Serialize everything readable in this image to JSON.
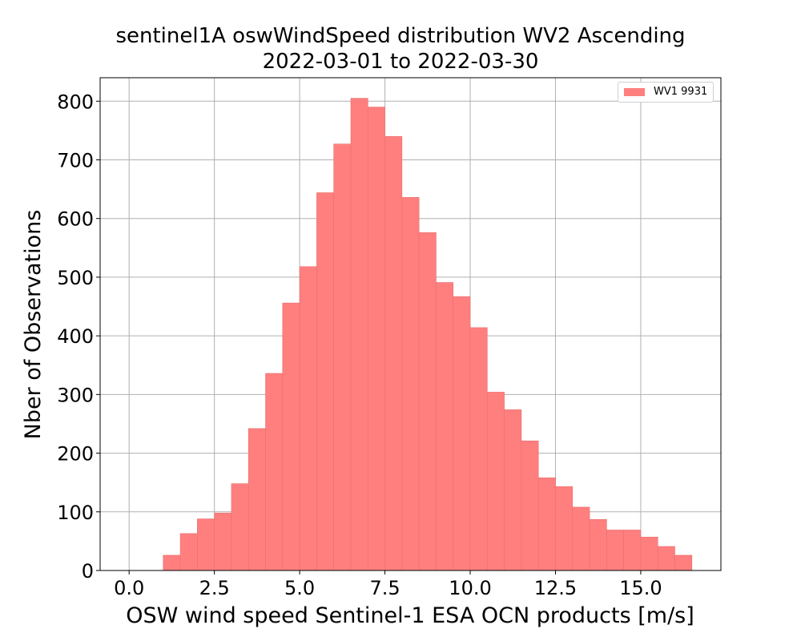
{
  "title_line1": "sentinel1A oswWindSpeed distribution WV2 Ascending",
  "title_line2": "2022-03-01 to 2022-03-30",
  "chart_data": {
    "type": "bar",
    "xlabel": "OSW wind speed Sentinel-1 ESA OCN products [m/s]",
    "ylabel": "Nber of Observations",
    "xlim": [
      -0.85,
      17.35
    ],
    "ylim": [
      0,
      840
    ],
    "xticks": [
      0.0,
      2.5,
      5.0,
      7.5,
      10.0,
      12.5,
      15.0
    ],
    "xtick_labels": [
      "0.0",
      "2.5",
      "5.0",
      "7.5",
      "10.0",
      "12.5",
      "15.0"
    ],
    "yticks": [
      0,
      100,
      200,
      300,
      400,
      500,
      600,
      700,
      800
    ],
    "ytick_labels": [
      "0",
      "100",
      "200",
      "300",
      "400",
      "500",
      "600",
      "700",
      "800"
    ],
    "grid": true,
    "legend_position": "top-right",
    "bar_color": "#ff7f7f",
    "bin_width": 0.5,
    "bin_edges": [
      1.0,
      1.5,
      2.0,
      2.5,
      3.0,
      3.5,
      4.0,
      4.5,
      5.0,
      5.5,
      6.0,
      6.5,
      7.0,
      7.5,
      8.0,
      8.5,
      9.0,
      9.5,
      10.0,
      10.5,
      11.0,
      11.5,
      12.0,
      12.5,
      13.0,
      13.5,
      14.0,
      14.5,
      15.0,
      15.5,
      16.0,
      16.5
    ],
    "series": [
      {
        "name": "WV1 9931",
        "values": [
          26,
          63,
          88,
          98,
          148,
          242,
          336,
          456,
          518,
          644,
          727,
          805,
          790,
          740,
          636,
          576,
          491,
          467,
          414,
          304,
          274,
          221,
          158,
          143,
          108,
          87,
          69,
          69,
          57,
          41,
          26
        ]
      }
    ]
  }
}
